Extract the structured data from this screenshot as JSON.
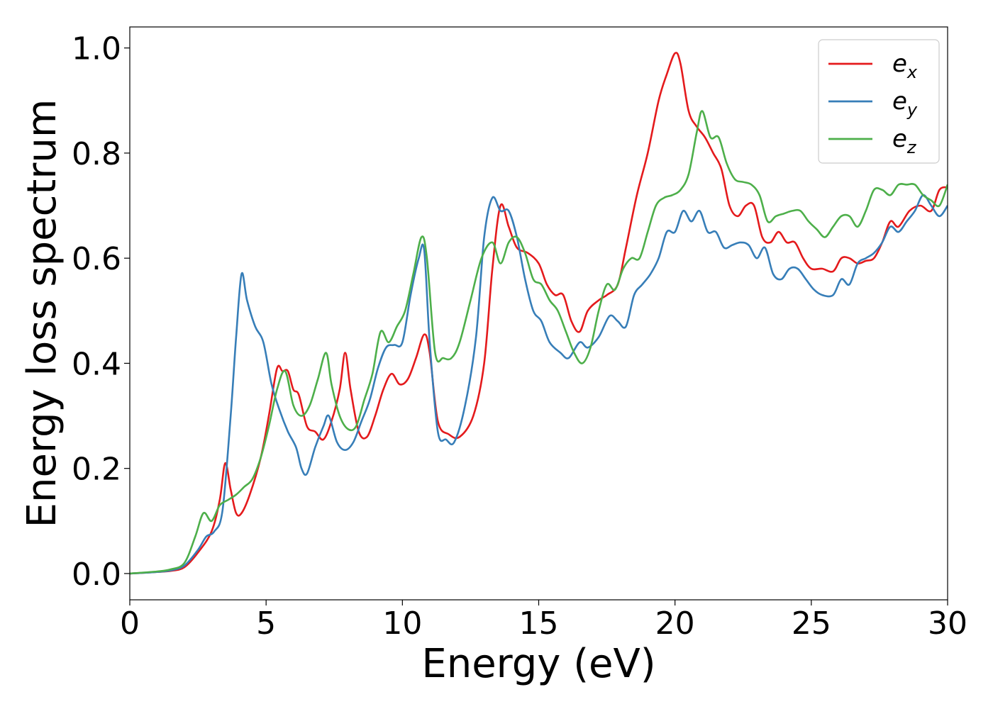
{
  "chart_data": {
    "type": "line",
    "xlabel": "Energy (eV)",
    "ylabel": "Energy loss spectrum",
    "xlim": [
      0,
      30
    ],
    "ylim": [
      -0.05,
      1.04
    ],
    "xticks": [
      0,
      5,
      10,
      15,
      20,
      25,
      30
    ],
    "yticks": [
      0.0,
      0.2,
      0.4,
      0.6,
      0.8,
      1.0
    ],
    "xtick_labels": [
      "0",
      "5",
      "10",
      "15",
      "20",
      "25",
      "30"
    ],
    "ytick_labels": [
      "0.0",
      "0.2",
      "0.4",
      "0.6",
      "0.8",
      "1.0"
    ],
    "grid": false,
    "legend_position": "top-right",
    "series": [
      {
        "name": "e",
        "subscript": "x",
        "color": "#e41a1c",
        "x": [
          0,
          1,
          1.5,
          2,
          2.5,
          3,
          3.3,
          3.5,
          3.7,
          3.9,
          4.1,
          4.4,
          4.8,
          5.1,
          5.4,
          5.6,
          5.8,
          6.0,
          6.2,
          6.5,
          6.8,
          7.1,
          7.4,
          7.7,
          7.9,
          8.1,
          8.4,
          8.7,
          9.0,
          9.3,
          9.6,
          9.9,
          10.2,
          10.5,
          10.8,
          11.0,
          11.3,
          11.7,
          12.1,
          12.6,
          13.0,
          13.3,
          13.6,
          13.9,
          14.2,
          14.6,
          15.0,
          15.3,
          15.6,
          15.9,
          16.2,
          16.5,
          16.8,
          17.2,
          17.5,
          17.9,
          18.2,
          18.6,
          19.0,
          19.4,
          19.7,
          20.0,
          20.2,
          20.5,
          20.8,
          21.1,
          21.4,
          21.7,
          22.0,
          22.3,
          22.6,
          22.9,
          23.2,
          23.5,
          23.8,
          24.1,
          24.4,
          24.7,
          25.0,
          25.4,
          25.8,
          26.1,
          26.4,
          26.7,
          27.0,
          27.3,
          27.6,
          27.9,
          28.2,
          28.6,
          29.0,
          29.4,
          29.7,
          30.0
        ],
        "values": [
          0,
          0.003,
          0.005,
          0.012,
          0.04,
          0.08,
          0.14,
          0.21,
          0.16,
          0.115,
          0.115,
          0.15,
          0.22,
          0.3,
          0.39,
          0.385,
          0.385,
          0.35,
          0.34,
          0.28,
          0.27,
          0.255,
          0.29,
          0.35,
          0.42,
          0.35,
          0.27,
          0.26,
          0.3,
          0.35,
          0.38,
          0.36,
          0.37,
          0.41,
          0.455,
          0.42,
          0.29,
          0.265,
          0.26,
          0.3,
          0.4,
          0.58,
          0.7,
          0.66,
          0.62,
          0.61,
          0.59,
          0.55,
          0.53,
          0.53,
          0.48,
          0.46,
          0.5,
          0.52,
          0.53,
          0.55,
          0.62,
          0.72,
          0.8,
          0.9,
          0.95,
          0.99,
          0.97,
          0.88,
          0.85,
          0.83,
          0.8,
          0.77,
          0.7,
          0.68,
          0.7,
          0.7,
          0.64,
          0.63,
          0.65,
          0.63,
          0.63,
          0.6,
          0.58,
          0.58,
          0.575,
          0.6,
          0.6,
          0.59,
          0.595,
          0.6,
          0.63,
          0.67,
          0.66,
          0.69,
          0.7,
          0.69,
          0.73,
          0.735
        ]
      },
      {
        "name": "e",
        "subscript": "y",
        "color": "#377eb8",
        "x": [
          0,
          1,
          1.5,
          2,
          2.5,
          2.8,
          3.1,
          3.4,
          3.7,
          3.9,
          4.1,
          4.3,
          4.6,
          4.9,
          5.2,
          5.5,
          5.8,
          6.1,
          6.3,
          6.5,
          6.8,
          7.1,
          7.3,
          7.6,
          7.9,
          8.2,
          8.5,
          8.8,
          9.1,
          9.4,
          9.7,
          10.0,
          10.3,
          10.6,
          10.8,
          11.0,
          11.3,
          11.6,
          11.9,
          12.3,
          12.7,
          13.0,
          13.3,
          13.6,
          13.9,
          14.2,
          14.5,
          14.8,
          15.1,
          15.4,
          15.8,
          16.1,
          16.5,
          16.8,
          17.2,
          17.6,
          17.9,
          18.2,
          18.5,
          18.8,
          19.1,
          19.4,
          19.7,
          20.0,
          20.3,
          20.6,
          20.9,
          21.2,
          21.5,
          21.8,
          22.1,
          22.4,
          22.7,
          23.0,
          23.3,
          23.6,
          23.9,
          24.2,
          24.5,
          24.8,
          25.1,
          25.4,
          25.8,
          26.1,
          26.4,
          26.7,
          27.0,
          27.3,
          27.6,
          27.9,
          28.2,
          28.5,
          28.8,
          29.1,
          29.4,
          29.7,
          30.0
        ],
        "values": [
          0,
          0.003,
          0.006,
          0.015,
          0.045,
          0.07,
          0.08,
          0.12,
          0.3,
          0.45,
          0.57,
          0.52,
          0.47,
          0.44,
          0.36,
          0.31,
          0.27,
          0.24,
          0.2,
          0.19,
          0.24,
          0.28,
          0.3,
          0.25,
          0.235,
          0.25,
          0.29,
          0.33,
          0.39,
          0.43,
          0.435,
          0.44,
          0.53,
          0.6,
          0.615,
          0.44,
          0.27,
          0.255,
          0.25,
          0.32,
          0.45,
          0.64,
          0.715,
          0.69,
          0.69,
          0.64,
          0.56,
          0.5,
          0.48,
          0.44,
          0.42,
          0.41,
          0.44,
          0.43,
          0.45,
          0.49,
          0.48,
          0.47,
          0.53,
          0.55,
          0.57,
          0.6,
          0.65,
          0.65,
          0.69,
          0.67,
          0.69,
          0.65,
          0.65,
          0.62,
          0.625,
          0.63,
          0.625,
          0.6,
          0.62,
          0.57,
          0.56,
          0.58,
          0.58,
          0.56,
          0.54,
          0.53,
          0.53,
          0.56,
          0.55,
          0.59,
          0.6,
          0.61,
          0.63,
          0.66,
          0.65,
          0.67,
          0.69,
          0.72,
          0.7,
          0.68,
          0.7
        ]
      },
      {
        "name": "e",
        "subscript": "z",
        "color": "#4daf4a",
        "x": [
          0,
          1,
          1.5,
          2,
          2.4,
          2.7,
          3.0,
          3.3,
          3.6,
          3.9,
          4.2,
          4.5,
          4.8,
          5.1,
          5.4,
          5.7,
          6.0,
          6.3,
          6.6,
          6.9,
          7.2,
          7.4,
          7.7,
          8.0,
          8.3,
          8.6,
          8.9,
          9.2,
          9.5,
          9.8,
          10.1,
          10.4,
          10.7,
          10.9,
          11.2,
          11.5,
          11.8,
          12.1,
          12.5,
          12.9,
          13.3,
          13.6,
          13.9,
          14.2,
          14.5,
          14.8,
          15.1,
          15.4,
          15.7,
          16.0,
          16.3,
          16.6,
          16.9,
          17.2,
          17.5,
          17.8,
          18.1,
          18.4,
          18.7,
          19.0,
          19.3,
          19.6,
          19.9,
          20.2,
          20.5,
          20.8,
          21.0,
          21.3,
          21.6,
          21.9,
          22.2,
          22.5,
          22.8,
          23.1,
          23.4,
          23.7,
          24.0,
          24.3,
          24.6,
          24.9,
          25.2,
          25.5,
          25.8,
          26.1,
          26.4,
          26.7,
          27.0,
          27.3,
          27.6,
          27.9,
          28.2,
          28.5,
          28.8,
          29.1,
          29.4,
          29.7,
          30.0
        ],
        "values": [
          0,
          0.004,
          0.008,
          0.02,
          0.07,
          0.115,
          0.1,
          0.13,
          0.14,
          0.15,
          0.165,
          0.18,
          0.22,
          0.28,
          0.35,
          0.385,
          0.32,
          0.3,
          0.32,
          0.37,
          0.42,
          0.36,
          0.3,
          0.275,
          0.28,
          0.33,
          0.38,
          0.46,
          0.44,
          0.47,
          0.5,
          0.57,
          0.64,
          0.6,
          0.42,
          0.41,
          0.41,
          0.44,
          0.52,
          0.6,
          0.63,
          0.59,
          0.63,
          0.64,
          0.61,
          0.56,
          0.55,
          0.52,
          0.5,
          0.46,
          0.42,
          0.4,
          0.43,
          0.5,
          0.55,
          0.54,
          0.58,
          0.6,
          0.6,
          0.65,
          0.7,
          0.715,
          0.72,
          0.73,
          0.76,
          0.84,
          0.88,
          0.83,
          0.83,
          0.78,
          0.75,
          0.745,
          0.74,
          0.72,
          0.67,
          0.68,
          0.685,
          0.69,
          0.69,
          0.67,
          0.655,
          0.64,
          0.66,
          0.68,
          0.68,
          0.66,
          0.69,
          0.73,
          0.73,
          0.72,
          0.74,
          0.74,
          0.74,
          0.72,
          0.71,
          0.7,
          0.74
        ]
      }
    ]
  }
}
